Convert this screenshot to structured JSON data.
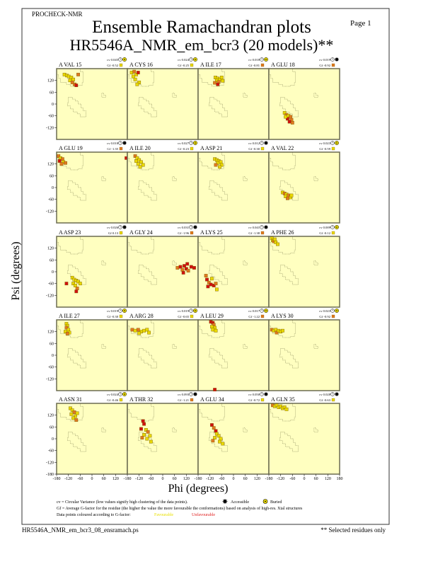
{
  "header": {
    "program": "PROCHECK-NMR",
    "page_label": "Page",
    "page_number": "1",
    "title": "Ensemble Ramachandran plots",
    "subtitle": "HR5546A_NMR_em_bcr3 (20 models)**"
  },
  "axes": {
    "xlabel": "Phi (degrees)",
    "ylabel": "Psi (degrees)",
    "xlim": [
      -180,
      180
    ],
    "ylim": [
      -180,
      180
    ],
    "x_ticks": [
      "-180",
      "-120",
      "-60",
      "0",
      "60",
      "120",
      "180"
    ],
    "y_ticks": [
      "120",
      "60",
      "0",
      "-60",
      "-120"
    ],
    "y_tick_bottom": "-180"
  },
  "colors": {
    "plot_background": "#ffffc0",
    "favourable": "#e8d800",
    "intermediate": "#e07820",
    "unfavourable": "#d01010",
    "frame": "#6b6b50"
  },
  "chart_data": {
    "type": "scatter",
    "panels": [
      {
        "label": "A VAL 15",
        "cv": "cv 0.045",
        "gf": "Gf -0.52",
        "gf_class": "fav",
        "exposure": "buried",
        "points": [
          [
            -140,
            150,
            "fav"
          ],
          [
            -128,
            145,
            "fav"
          ],
          [
            -118,
            140,
            "fav"
          ],
          [
            -105,
            135,
            "fav"
          ],
          [
            -95,
            125,
            "fav"
          ],
          [
            -112,
            120,
            "fav"
          ],
          [
            -100,
            110,
            "mid"
          ],
          [
            -88,
            100,
            "mid"
          ],
          [
            -80,
            95,
            "unfav"
          ],
          [
            -70,
            150,
            "mid"
          ]
        ]
      },
      {
        "label": "A CYS 16",
        "cv": "cv 0.024",
        "gf": "Gf -0.25",
        "gf_class": "fav",
        "exposure": "buried",
        "points": [
          [
            -158,
            160,
            "fav"
          ],
          [
            -145,
            165,
            "mid"
          ],
          [
            -135,
            150,
            "fav"
          ],
          [
            -150,
            140,
            "fav"
          ],
          [
            -125,
            160,
            "unfav"
          ],
          [
            -140,
            125,
            "fav"
          ],
          [
            -120,
            110,
            "fav"
          ],
          [
            -130,
            100,
            "fav"
          ]
        ]
      },
      {
        "label": "A ILE 17",
        "cv": "cv 0.018",
        "gf": "Gf -0.81",
        "gf_class": "mid",
        "exposure": "buried",
        "points": [
          [
            -92,
            135,
            "fav"
          ],
          [
            -80,
            130,
            "fav"
          ],
          [
            -70,
            125,
            "fav"
          ],
          [
            -85,
            120,
            "fav"
          ],
          [
            -60,
            135,
            "fav"
          ],
          [
            -75,
            112,
            "mid"
          ],
          [
            -95,
            108,
            "mid"
          ],
          [
            -55,
            118,
            "fav"
          ],
          [
            -80,
            100,
            "unfav"
          ]
        ]
      },
      {
        "label": "A GLU 18",
        "cv": "cv 0.019",
        "gf": "Gf -0.92",
        "gf_class": "mid",
        "exposure": "accessible",
        "points": [
          [
            -100,
            -45,
            "fav"
          ],
          [
            -90,
            -55,
            "mid"
          ],
          [
            -80,
            -60,
            "fav"
          ],
          [
            -70,
            -65,
            "mid"
          ],
          [
            -85,
            -75,
            "unfav"
          ],
          [
            -65,
            -80,
            "mid"
          ],
          [
            -75,
            -90,
            "unfav"
          ],
          [
            -60,
            -95,
            "mid"
          ],
          [
            -95,
            -65,
            "fav"
          ]
        ]
      },
      {
        "label": "A GLU 19",
        "cv": "cv 0.018",
        "gf": "Gf -1.35",
        "gf_class": "mid",
        "exposure": "accessible",
        "points": [
          [
            -170,
            160,
            "mid"
          ],
          [
            -160,
            150,
            "fav"
          ],
          [
            -150,
            145,
            "mid"
          ],
          [
            -165,
            135,
            "unfav"
          ],
          [
            -145,
            130,
            "fav"
          ],
          [
            -135,
            125,
            "mid"
          ],
          [
            -155,
            120,
            "mid"
          ],
          [
            175,
            150,
            "unfav"
          ]
        ]
      },
      {
        "label": "A ILE 20",
        "cv": "cv 0.027",
        "gf": "Gf -0.23",
        "gf_class": "fav",
        "exposure": "buried",
        "points": [
          [
            -140,
            160,
            "mid"
          ],
          [
            -130,
            150,
            "fav"
          ],
          [
            -120,
            140,
            "fav"
          ],
          [
            -110,
            130,
            "fav"
          ],
          [
            -125,
            120,
            "fav"
          ],
          [
            -100,
            115,
            "fav"
          ],
          [
            -115,
            105,
            "fav"
          ],
          [
            -135,
            135,
            "fav"
          ]
        ]
      },
      {
        "label": "A ASP 21",
        "cv": "cv 0.012",
        "gf": "Gf -0.30",
        "gf_class": "fav",
        "exposure": "accessible",
        "points": [
          [
            -95,
            145,
            "fav"
          ],
          [
            -85,
            140,
            "fav"
          ],
          [
            -75,
            135,
            "fav"
          ],
          [
            -65,
            130,
            "fav"
          ],
          [
            -80,
            125,
            "fav"
          ],
          [
            -90,
            115,
            "mid"
          ],
          [
            -60,
            115,
            "fav"
          ],
          [
            -70,
            105,
            "fav"
          ]
        ]
      },
      {
        "label": "A VAL 22",
        "cv": "cv 0.023",
        "gf": "Gf -0.59",
        "gf_class": "fav",
        "exposure": "buried",
        "points": [
          [
            -110,
            -25,
            "fav"
          ],
          [
            -100,
            -30,
            "mid"
          ],
          [
            -90,
            -35,
            "fav"
          ],
          [
            -80,
            -40,
            "mid"
          ],
          [
            -95,
            -45,
            "fav"
          ],
          [
            -70,
            -50,
            "fav"
          ],
          [
            -85,
            -55,
            "mid"
          ],
          [
            -65,
            -40,
            "fav"
          ]
        ]
      },
      {
        "label": "A ASP 23",
        "cv": "cv 0.026",
        "gf": "Gf 0.13",
        "gf_class": "fav",
        "exposure": "accessible",
        "points": [
          [
            -100,
            -30,
            "fav"
          ],
          [
            -90,
            -40,
            "fav"
          ],
          [
            -80,
            -45,
            "fav"
          ],
          [
            -70,
            -50,
            "fav"
          ],
          [
            -95,
            -60,
            "fav"
          ],
          [
            -60,
            -60,
            "fav"
          ],
          [
            -85,
            -70,
            "fav"
          ],
          [
            -75,
            -85,
            "mid"
          ],
          [
            -80,
            -100,
            "unfav"
          ],
          [
            -130,
            -60,
            "unfav"
          ]
        ]
      },
      {
        "label": "A GLY 24",
        "cv": "cv 0.031",
        "gf": "Gf -1.96",
        "gf_class": "mid",
        "exposure": "accessible",
        "points": [
          [
            75,
            20,
            "mid"
          ],
          [
            90,
            25,
            "unfav"
          ],
          [
            100,
            10,
            "mid"
          ],
          [
            110,
            30,
            "unfav"
          ],
          [
            120,
            15,
            "unfav"
          ],
          [
            130,
            5,
            "mid"
          ],
          [
            145,
            25,
            "unfav"
          ],
          [
            160,
            20,
            "unfav"
          ],
          [
            105,
            -5,
            "unfav"
          ],
          [
            125,
            40,
            "unfav"
          ]
        ]
      },
      {
        "label": "A LYS 25",
        "cv": "cv 0.041",
        "gf": "Gf -1.38",
        "gf_class": "mid",
        "exposure": "accessible",
        "points": [
          [
            -140,
            -20,
            "mid"
          ],
          [
            -135,
            -40,
            "unfav"
          ],
          [
            -125,
            -55,
            "mid"
          ],
          [
            -115,
            -65,
            "unfav"
          ],
          [
            -100,
            -70,
            "unfav"
          ],
          [
            -90,
            -60,
            "mid"
          ],
          [
            -130,
            -75,
            "unfav"
          ],
          [
            -85,
            -90,
            "fav"
          ],
          [
            -110,
            -35,
            "fav"
          ]
        ]
      },
      {
        "label": "A PHE 26",
        "cv": "cv 0.009",
        "gf": "Gf -0.12",
        "gf_class": "fav",
        "exposure": "buried",
        "points": [
          [
            -165,
            170,
            "fav"
          ],
          [
            -160,
            160,
            "fav"
          ],
          [
            -155,
            155,
            "mid"
          ],
          [
            -150,
            165,
            "fav"
          ],
          [
            -145,
            150,
            "fav"
          ],
          [
            -135,
            140,
            "fav"
          ]
        ]
      },
      {
        "label": "A ILE 27",
        "cv": "cv 0.019",
        "gf": "Gf -0.30",
        "gf_class": "fav",
        "exposure": "buried",
        "points": [
          [
            -130,
            160,
            "fav"
          ],
          [
            -125,
            150,
            "fav"
          ],
          [
            -130,
            140,
            "mid"
          ],
          [
            -120,
            130,
            "fav"
          ],
          [
            -135,
            120,
            "fav"
          ],
          [
            -115,
            115,
            "fav"
          ],
          [
            -125,
            110,
            "mid"
          ]
        ]
      },
      {
        "label": "A ARG 28",
        "cv": "cv 0.019",
        "gf": "Gf -0.65",
        "gf_class": "fav",
        "exposure": "buried",
        "points": [
          [
            -155,
            130,
            "mid"
          ],
          [
            -140,
            125,
            "fav"
          ],
          [
            -125,
            130,
            "mid"
          ],
          [
            -110,
            120,
            "fav"
          ],
          [
            -95,
            125,
            "fav"
          ],
          [
            -80,
            130,
            "fav"
          ],
          [
            -120,
            112,
            "fav"
          ],
          [
            -70,
            115,
            "fav"
          ]
        ]
      },
      {
        "label": "A LEU 29",
        "cv": "cv 0.017",
        "gf": "Gf -1.22",
        "gf_class": "mid",
        "exposure": "buried",
        "points": [
          [
            -115,
            170,
            "unfav"
          ],
          [
            -105,
            165,
            "unfav"
          ],
          [
            -100,
            155,
            "mid"
          ],
          [
            -110,
            145,
            "fav"
          ],
          [
            -95,
            140,
            "fav"
          ],
          [
            -105,
            130,
            "fav"
          ],
          [
            -90,
            125,
            "fav"
          ],
          [
            -95,
            -175,
            "unfav"
          ]
        ]
      },
      {
        "label": "A LYS 30",
        "cv": "cv 0.023",
        "gf": "Gf -0.92",
        "gf_class": "mid",
        "exposure": "buried",
        "points": [
          [
            -165,
            130,
            "mid"
          ],
          [
            -155,
            125,
            "fav"
          ],
          [
            -145,
            130,
            "fav"
          ],
          [
            -140,
            115,
            "mid"
          ],
          [
            -130,
            125,
            "fav"
          ],
          [
            -120,
            120,
            "fav"
          ],
          [
            -110,
            125,
            "fav"
          ]
        ]
      },
      {
        "label": "A ASN 31",
        "cv": "cv 0.024",
        "gf": "Gf -0.46",
        "gf_class": "fav",
        "exposure": "buried",
        "points": [
          [
            -110,
            155,
            "fav"
          ],
          [
            -100,
            145,
            "fav"
          ],
          [
            -90,
            135,
            "mid"
          ],
          [
            -105,
            125,
            "fav"
          ],
          [
            -85,
            115,
            "fav"
          ],
          [
            -95,
            105,
            "fav"
          ],
          [
            -80,
            95,
            "mid"
          ],
          [
            -75,
            130,
            "fav"
          ]
        ]
      },
      {
        "label": "A THR 32",
        "cv": "cv 0.093",
        "gf": "Gf -1.21",
        "gf_class": "mid",
        "exposure": "accessible",
        "points": [
          [
            -100,
            90,
            "unfav"
          ],
          [
            -95,
            75,
            "unfav"
          ],
          [
            -110,
            50,
            "unfav"
          ],
          [
            -85,
            45,
            "fav"
          ],
          [
            -75,
            35,
            "mid"
          ],
          [
            -95,
            20,
            "fav"
          ],
          [
            -65,
            15,
            "fav"
          ],
          [
            -80,
            0,
            "fav"
          ],
          [
            -60,
            -15,
            "fav"
          ],
          [
            -105,
            5,
            "mid"
          ]
        ]
      },
      {
        "label": "A GLU 34",
        "cv": "cv 0.050",
        "gf": "Gf -0.72",
        "gf_class": "fav",
        "exposure": "accessible",
        "points": [
          [
            -110,
            70,
            "unfav"
          ],
          [
            -100,
            55,
            "mid"
          ],
          [
            -90,
            40,
            "unfav"
          ],
          [
            -85,
            25,
            "fav"
          ],
          [
            -75,
            15,
            "fav"
          ],
          [
            -95,
            5,
            "fav"
          ],
          [
            -65,
            0,
            "fav"
          ],
          [
            -70,
            -15,
            "fav"
          ],
          [
            -55,
            -25,
            "fav"
          ],
          [
            -105,
            -10,
            "mid"
          ]
        ]
      },
      {
        "label": "A GLN 35",
        "cv": "cv 0.028",
        "gf": "Gf -0.63",
        "gf_class": "fav",
        "exposure": "accessible",
        "points": [
          [
            -160,
            170,
            "mid"
          ],
          [
            -150,
            165,
            "fav"
          ],
          [
            -140,
            170,
            "fav"
          ],
          [
            -130,
            160,
            "fav"
          ],
          [
            -120,
            165,
            "fav"
          ],
          [
            -110,
            155,
            "fav"
          ],
          [
            -100,
            160,
            "fav"
          ],
          [
            -90,
            150,
            "fav"
          ]
        ]
      }
    ]
  },
  "legend": {
    "cv_line": "cv = Circular Variance (low values signify high clustering of the data points).",
    "accessible": "Accessible",
    "buried": "Buried",
    "gf_line": "Gf = Average G-factor for the residue (the higher the value the more favourable the conformations) based on analysis of high-res. Xtal structures",
    "colour_line": "Data points coloured according to G-factor:",
    "favourable": "Favourable",
    "unfavourable": "Unfavourable"
  },
  "footer": {
    "filename": "HR5546A_NMR_em_bcr3_08_ensramach.ps",
    "note": "** Selected residues only"
  }
}
